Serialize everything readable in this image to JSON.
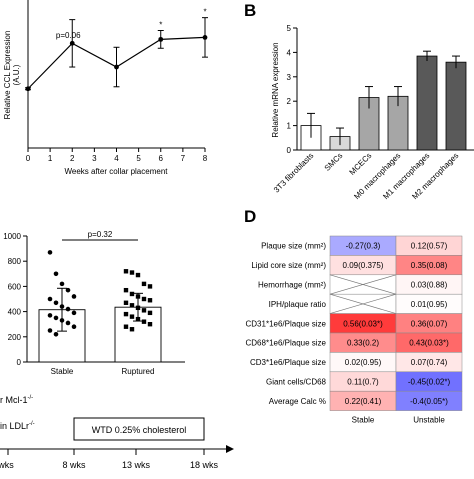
{
  "panel_labels": {
    "b": "B",
    "d": "D"
  },
  "chart_data": [
    {
      "id": "A",
      "type": "line",
      "ylabel": "Relative CCL Expression",
      "yunit": "(A.U.)",
      "xlabel": "Weeks after collar placement",
      "x": [
        0,
        2,
        4,
        6,
        8
      ],
      "values": [
        3.0,
        5.3,
        4.1,
        5.5,
        5.6
      ],
      "errors": [
        0.05,
        1.2,
        1.0,
        0.45,
        1.0
      ],
      "annotations": [
        {
          "x": 2,
          "text": "p=0.06"
        },
        {
          "x": 6,
          "text": "*"
        },
        {
          "x": 8,
          "text": "*"
        }
      ],
      "xticks": [
        "0",
        "1",
        "2",
        "3",
        "4",
        "5",
        "6",
        "7",
        "8"
      ],
      "xlim": [
        0,
        8
      ],
      "ylim": [
        0,
        8
      ]
    },
    {
      "id": "B",
      "type": "bar",
      "ylabel": "Relative mRNA expression",
      "categories": [
        "3T3 fibroblasts",
        "SMCs",
        "MCECs",
        "M0 macrophages",
        "M1 macrophages",
        "M2 macrophages"
      ],
      "values": [
        1.0,
        0.55,
        2.15,
        2.2,
        3.85,
        3.6
      ],
      "errors": [
        0.5,
        0.35,
        0.45,
        0.4,
        0.2,
        0.25
      ],
      "colors": [
        "#ffffff",
        "#d9d9d9",
        "#a6a6a6",
        "#a6a6a6",
        "#595959",
        "#595959"
      ],
      "ylim": [
        0,
        5
      ],
      "yticks": [
        "0",
        "1",
        "2",
        "3",
        "4",
        "5"
      ]
    },
    {
      "id": "C",
      "type": "scatter",
      "categories": [
        "Stable",
        "Ruptured"
      ],
      "means": [
        415,
        435
      ],
      "sd": [
        170,
        110
      ],
      "points": [
        [
          870,
          700,
          620,
          570,
          520,
          500,
          470,
          440,
          420,
          390,
          370,
          350,
          330,
          310,
          280,
          250,
          220
        ],
        [
          720,
          710,
          690,
          620,
          600,
          570,
          540,
          520,
          500,
          490,
          470,
          450,
          430,
          410,
          390,
          380,
          360,
          340,
          320,
          300,
          280,
          260
        ]
      ],
      "annotation": "p=0.32",
      "ylim": [
        0,
        1000
      ],
      "yticks": [
        "0",
        "200",
        "400",
        "600",
        "800",
        "1000"
      ]
    },
    {
      "id": "D",
      "type": "heatmap",
      "columns": [
        "Stable",
        "Unstable"
      ],
      "rows": [
        {
          "label": "Plaque size (mm²)",
          "cells": [
            "-0.27(0.3)",
            "0.12(0.57)"
          ],
          "vals": [
            -0.27,
            0.12
          ]
        },
        {
          "label": "Lipid core size (mm²)",
          "cells": [
            "0.09(0.375)",
            "0.35(0.08)"
          ],
          "vals": [
            0.09,
            0.35
          ]
        },
        {
          "label": "Hemorrhage (mm²)",
          "cells": [
            "",
            "0.03(0.88)"
          ],
          "vals": [
            null,
            0.03
          ]
        },
        {
          "label": "IPH/plaque ratio",
          "cells": [
            "",
            "0.01(0.95)"
          ],
          "vals": [
            null,
            0.01
          ]
        },
        {
          "label": "CD31*1e6/Plaque size",
          "cells": [
            "0.56(0.03*)",
            "0.36(0.07)"
          ],
          "vals": [
            0.56,
            0.36
          ]
        },
        {
          "label": "CD68*1e6/Plaque size",
          "cells": [
            "0.33(0.2)",
            "0.43(0.03*)"
          ],
          "vals": [
            0.33,
            0.43
          ]
        },
        {
          "label": "CD3*1e6/Plaque size",
          "cells": [
            "0.02(0.95)",
            "0.07(0.74)"
          ],
          "vals": [
            0.02,
            0.07
          ]
        },
        {
          "label": "Giant cells/CD68",
          "cells": [
            "0.11(0.7)",
            "-0.45(0.02*)"
          ],
          "vals": [
            0.11,
            -0.45
          ]
        },
        {
          "label": "Average Calc %",
          "cells": [
            "0.22(0.41)",
            "-0.4(0.05*)"
          ],
          "vals": [
            0.22,
            -0.4
          ]
        }
      ]
    }
  ],
  "timeline": {
    "left_lines": [
      "r Mcl-1",
      "in LDLr"
    ],
    "left_sup": [
      "-/-",
      "-/-"
    ],
    "box": "WTD 0.25% cholesterol",
    "ticks": [
      "wks",
      "8 wks",
      "13 wks",
      "18 wks"
    ]
  }
}
